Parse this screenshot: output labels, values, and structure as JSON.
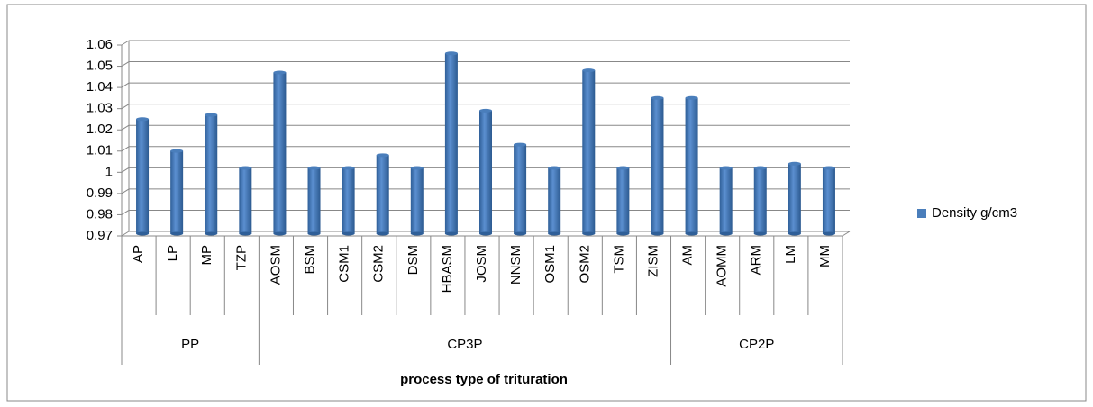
{
  "chart_data": {
    "type": "bar",
    "groups": [
      {
        "name": "PP",
        "categories": [
          "AP",
          "LP",
          "MP",
          "TZP"
        ]
      },
      {
        "name": "CP3P",
        "categories": [
          "AOSM",
          "BSM",
          "CSM1",
          "CSM2",
          "DSM",
          "HBASM",
          "JOSM",
          "NNSM",
          "OSM1",
          "OSM2",
          "TSM",
          "ZISM"
        ]
      },
      {
        "name": "CP2P",
        "categories": [
          "AM",
          "AOMM",
          "ARM",
          "LM",
          "MM"
        ]
      }
    ],
    "series": [
      {
        "name": "Density g/cm3",
        "color": "#4a7ebb",
        "values": [
          1.024,
          1.009,
          1.026,
          1.001,
          1.046,
          1.001,
          1.001,
          1.007,
          1.001,
          1.055,
          1.028,
          1.012,
          1.001,
          1.047,
          1.001,
          1.034,
          1.034,
          1.001,
          1.001,
          1.003,
          1.001
        ]
      }
    ],
    "x_label": "process type of trituration",
    "ylim": [
      0.97,
      1.06
    ],
    "yticks": [
      0.97,
      0.98,
      0.99,
      1,
      1.01,
      1.02,
      1.03,
      1.04,
      1.05,
      1.06
    ],
    "grid": true,
    "legend": "right"
  }
}
